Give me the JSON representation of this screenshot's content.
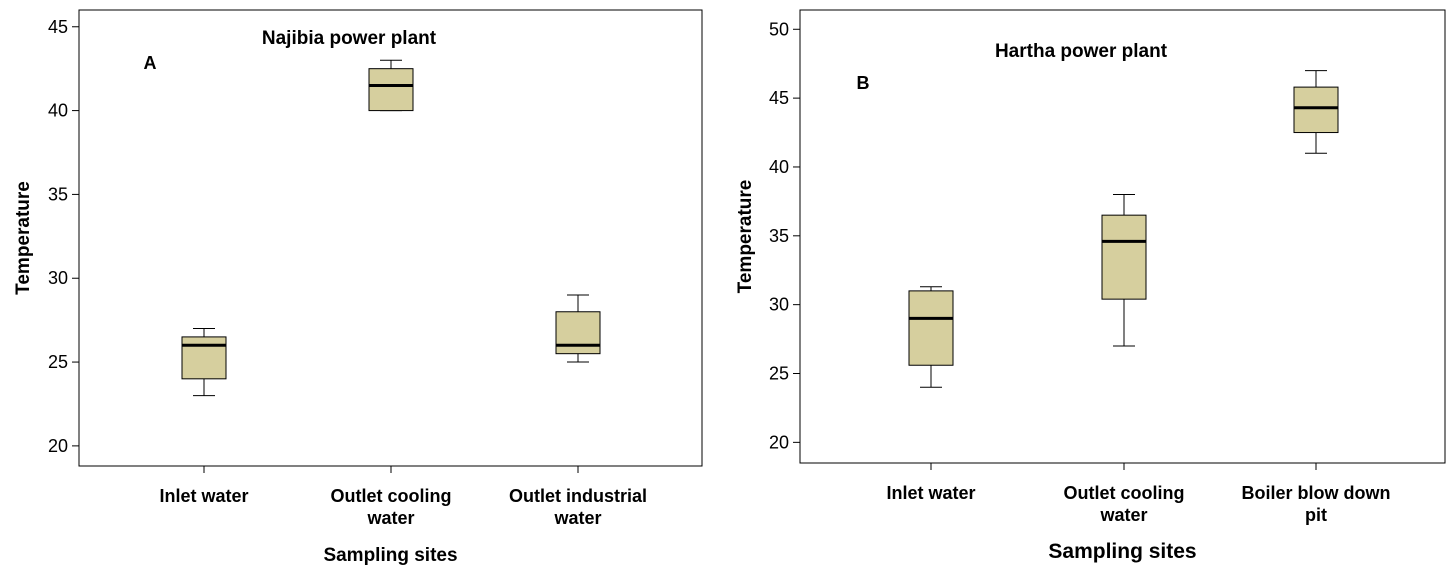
{
  "colors": {
    "box_fill": "#d6cf9e",
    "stroke": "#000000",
    "background": "#ffffff"
  },
  "chart_data": [
    {
      "type": "box",
      "title": "Najibia power plant",
      "panel_label": "A",
      "xlabel": "Sampling sites",
      "ylabel": "Temperature",
      "ylim": [
        18.8,
        46
      ],
      "yticks": [
        20,
        25,
        30,
        35,
        40,
        45
      ],
      "grid": false,
      "categories": [
        {
          "lines": [
            "Inlet water"
          ]
        },
        {
          "lines": [
            "Outlet cooling",
            "water"
          ]
        },
        {
          "lines": [
            "Outlet industrial",
            "water"
          ]
        }
      ],
      "boxes": [
        {
          "min": 23,
          "q1": 24,
          "median": 26,
          "q3": 26.5,
          "max": 27
        },
        {
          "min": 40,
          "q1": 40,
          "median": 41.5,
          "q3": 42.5,
          "max": 43
        },
        {
          "min": 25,
          "q1": 25.5,
          "median": 26,
          "q3": 28,
          "max": 29
        }
      ]
    },
    {
      "type": "box",
      "title": "Hartha power plant",
      "panel_label": "B",
      "xlabel": "Sampling sites",
      "ylabel": "Temperature",
      "ylim": [
        18.5,
        51.4
      ],
      "yticks": [
        20,
        25,
        30,
        35,
        40,
        45,
        50
      ],
      "grid": false,
      "categories": [
        {
          "lines": [
            "Inlet water"
          ]
        },
        {
          "lines": [
            "Outlet cooling",
            "water"
          ]
        },
        {
          "lines": [
            "Boiler blow down",
            "pit"
          ]
        }
      ],
      "boxes": [
        {
          "min": 24,
          "q1": 25.6,
          "median": 29,
          "q3": 31,
          "max": 31.3
        },
        {
          "min": 27,
          "q1": 30.4,
          "median": 34.6,
          "q3": 36.5,
          "max": 38
        },
        {
          "min": 41,
          "q1": 42.5,
          "median": 44.3,
          "q3": 45.8,
          "max": 47
        }
      ]
    }
  ]
}
